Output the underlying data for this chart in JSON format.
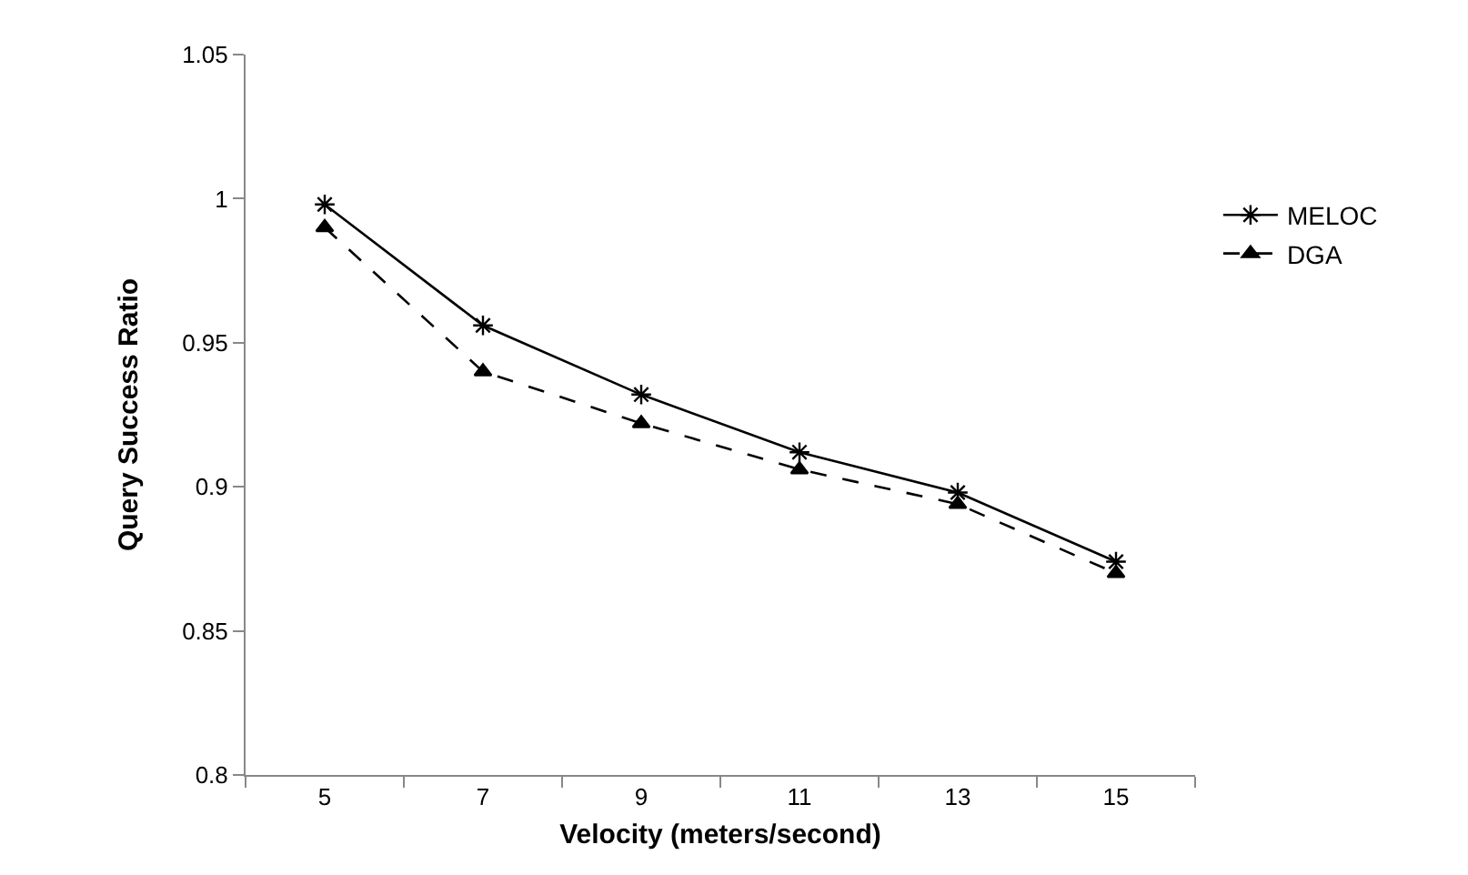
{
  "chart_data": {
    "type": "line",
    "xlabel": "Velocity (meters/second)",
    "ylabel": "Query Success Ratio",
    "categories": [
      "5",
      "7",
      "9",
      "11",
      "13",
      "15"
    ],
    "series": [
      {
        "name": "MELOC",
        "color": "#000000",
        "marker": "cross",
        "line_style": "solid",
        "values": [
          0.998,
          0.956,
          0.932,
          0.912,
          0.898,
          0.874
        ]
      },
      {
        "name": "DGA",
        "color": "#000000",
        "marker": "triangle",
        "line_style": "dashed",
        "values": [
          0.99,
          0.94,
          0.922,
          0.906,
          0.894,
          0.87
        ]
      }
    ],
    "ylim": [
      0.8,
      1.05
    ],
    "yticks": [
      0.8,
      0.85,
      0.9,
      0.95,
      1,
      1.05
    ],
    "legend": "right"
  }
}
